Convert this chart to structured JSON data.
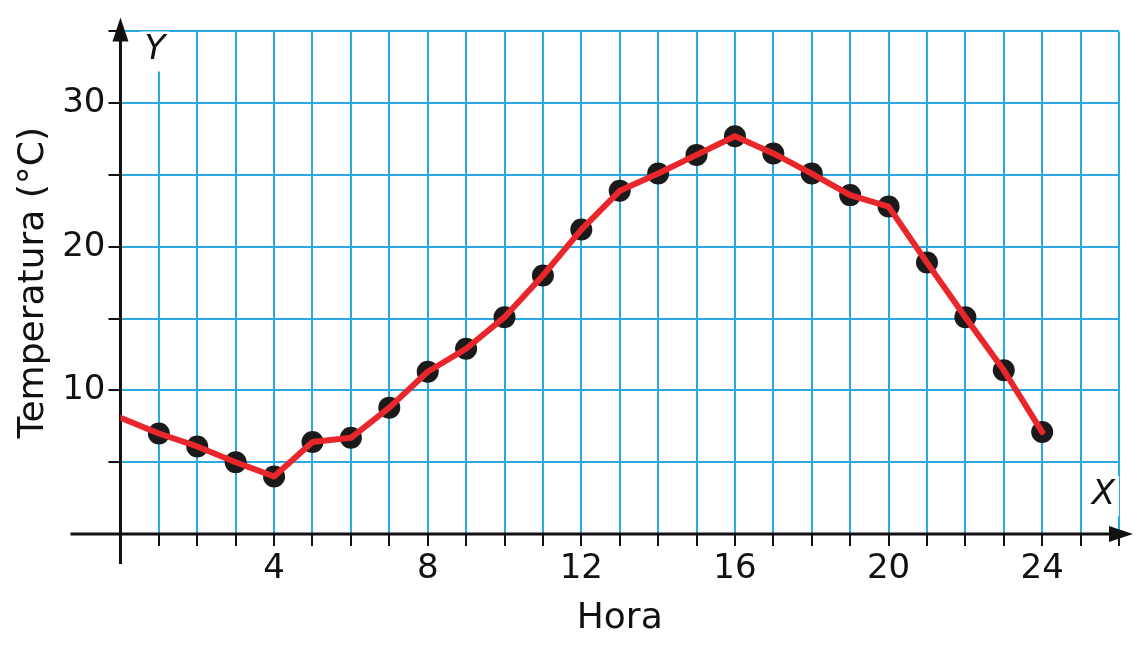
{
  "chart_data": {
    "type": "line",
    "xlabel": "Hora",
    "ylabel": "Temperatura (°C)",
    "annotations": [
      "Y",
      "X"
    ],
    "series": [
      {
        "type": "line",
        "color": "#e8262b",
        "marker": "none",
        "x": [
          0,
          1,
          2,
          3,
          4,
          5,
          6,
          7,
          8,
          9,
          10,
          11,
          12,
          13,
          14,
          15,
          16,
          17,
          18,
          19,
          20,
          21,
          22,
          23,
          24
        ],
        "values": [
          8.1,
          7,
          6.1,
          5,
          4,
          6.4,
          6.7,
          8.8,
          11.3,
          12.9,
          15.1,
          18,
          21.2,
          23.9,
          25.1,
          26.4,
          27.7,
          26.5,
          25.1,
          23.6,
          22.8,
          18.9,
          15.1,
          11.4,
          7.1
        ]
      },
      {
        "type": "scatter",
        "color": "#1a1a1a",
        "marker": "circle",
        "x": [
          1,
          2,
          3,
          4,
          5,
          6,
          7,
          8,
          9,
          10,
          11,
          12,
          13,
          14,
          15,
          16,
          17,
          18,
          19,
          20,
          21,
          22,
          23,
          24
        ],
        "values": [
          7,
          6.1,
          5,
          4,
          6.4,
          6.7,
          8.8,
          11.3,
          12.9,
          15.1,
          18,
          21.2,
          23.9,
          25.1,
          26.4,
          27.7,
          26.5,
          25.1,
          23.6,
          22.8,
          18.9,
          15.1,
          11.4,
          7.1
        ]
      }
    ],
    "xlim": [
      0,
      26
    ],
    "ylim": [
      0,
      35
    ],
    "xticks": [
      {
        "value": 1,
        "label": null
      },
      {
        "value": 2,
        "label": null
      },
      {
        "value": 3,
        "label": null
      },
      4,
      {
        "value": 5,
        "label": null
      },
      {
        "value": 6,
        "label": null
      },
      {
        "value": 7,
        "label": null
      },
      8,
      {
        "value": 9,
        "label": null
      },
      {
        "value": 10,
        "label": null
      },
      {
        "value": 11,
        "label": null
      },
      12,
      {
        "value": 13,
        "label": null
      },
      {
        "value": 14,
        "label": null
      },
      {
        "value": 15,
        "label": null
      },
      16,
      {
        "value": 17,
        "label": null
      },
      {
        "value": 18,
        "label": null
      },
      {
        "value": 19,
        "label": null
      },
      20,
      {
        "value": 21,
        "label": null
      },
      {
        "value": 22,
        "label": null
      },
      {
        "value": 23,
        "label": null
      },
      24,
      {
        "value": 25,
        "label": null
      },
      {
        "value": 26,
        "label": null
      }
    ],
    "yticks": [
      {
        "value": 5,
        "label": null
      },
      10,
      {
        "value": 15,
        "label": null
      },
      20,
      {
        "value": 25,
        "label": null
      },
      30,
      {
        "value": 35,
        "label": null
      }
    ],
    "grid": true,
    "legend": false
  }
}
